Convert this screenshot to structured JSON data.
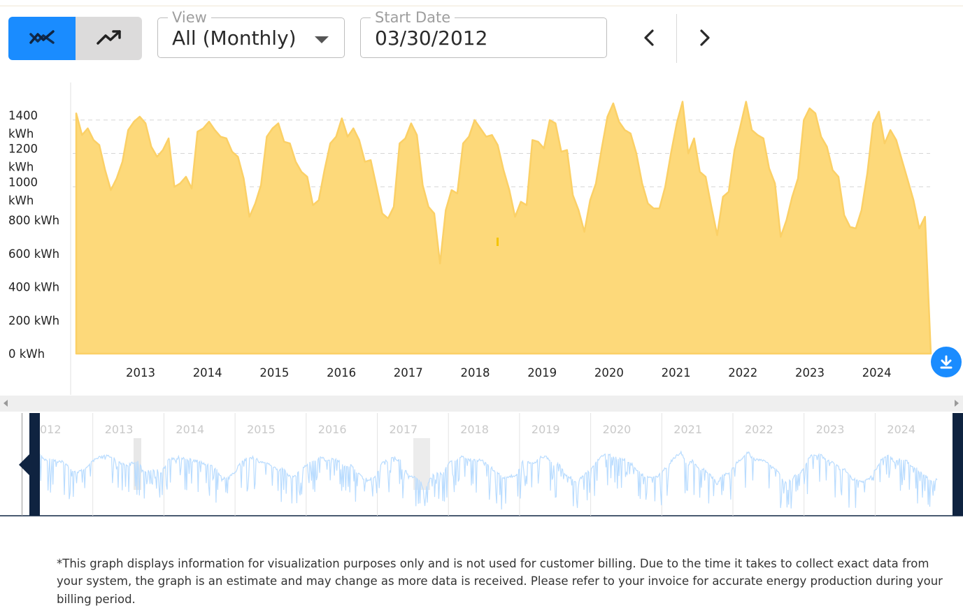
{
  "toolbar": {
    "view_legend": "View",
    "view_value": "All (Monthly)",
    "start_date_legend": "Start Date",
    "start_date_value": "03/30/2012",
    "buttons": [
      "usage-chart-icon",
      "production-trend-icon",
      "chevron-left-icon",
      "chevron-right-icon",
      "download-icon"
    ]
  },
  "colors": {
    "accent": "#1a8cff",
    "area_fill": "#fdd97a",
    "area_stroke": "#fbd066",
    "navigator_line": "#b9dcff",
    "handle": "#0f2340"
  },
  "chart_data": {
    "type": "area",
    "y_ticks": [
      "0 kWh",
      "200 kWh",
      "400 kWh",
      "600 kWh",
      "800 kWh",
      "1000 kWh",
      "1200 kWh",
      "1400 kWh"
    ],
    "x_ticks": [
      "2013",
      "2014",
      "2015",
      "2016",
      "2017",
      "2018",
      "2019",
      "2020",
      "2021",
      "2022",
      "2023",
      "2024"
    ],
    "ylim": [
      0,
      1600
    ],
    "grid": "dashed horizontal",
    "x_start": 2012.25,
    "x_end": 2024.96,
    "values": [
      1440,
      1310,
      1350,
      1280,
      1250,
      1100,
      980,
      1050,
      1150,
      1340,
      1390,
      1420,
      1380,
      1240,
      1180,
      1220,
      1290,
      1000,
      1020,
      1060,
      990,
      1330,
      1350,
      1390,
      1340,
      1300,
      1290,
      1210,
      1180,
      1050,
      820,
      900,
      1010,
      1300,
      1350,
      1380,
      1270,
      1260,
      1150,
      1090,
      1060,
      890,
      920,
      1100,
      1260,
      1300,
      1410,
      1300,
      1350,
      1280,
      1150,
      1160,
      1000,
      840,
      810,
      880,
      1260,
      1290,
      1380,
      1310,
      1010,
      880,
      840,
      540,
      860,
      980,
      960,
      1260,
      1300,
      1400,
      1350,
      1300,
      1310,
      1250,
      1100,
      980,
      820,
      910,
      890,
      1280,
      1270,
      1230,
      1400,
      1380,
      1210,
      1220,
      950,
      860,
      730,
      920,
      1020,
      1230,
      1420,
      1500,
      1390,
      1340,
      1320,
      1200,
      1020,
      900,
      870,
      870,
      1000,
      1200,
      1380,
      1510,
      1200,
      1290,
      1090,
      1060,
      880,
      710,
      940,
      970,
      1220,
      1360,
      1510,
      1340,
      1310,
      1290,
      1110,
      1020,
      700,
      800,
      940,
      1050,
      1400,
      1470,
      1440,
      1300,
      1240,
      1100,
      1060,
      830,
      760,
      750,
      860,
      1080,
      1380,
      1450,
      1260,
      1340,
      1280,
      1160,
      1040,
      920,
      750,
      820,
      0
    ]
  },
  "navigator": {
    "year_labels": [
      "012",
      "2013",
      "2014",
      "2015",
      "2016",
      "2017",
      "2018",
      "2019",
      "2020",
      "2021",
      "2022",
      "2023",
      "2024"
    ]
  },
  "disclaimer": "*This graph displays information for visualization purposes only and is not used for customer billing. Due to the time it takes to collect exact data from your system, the graph is an estimate and may change as more data is received. Please refer to your invoice for accurate energy production during your billing period."
}
